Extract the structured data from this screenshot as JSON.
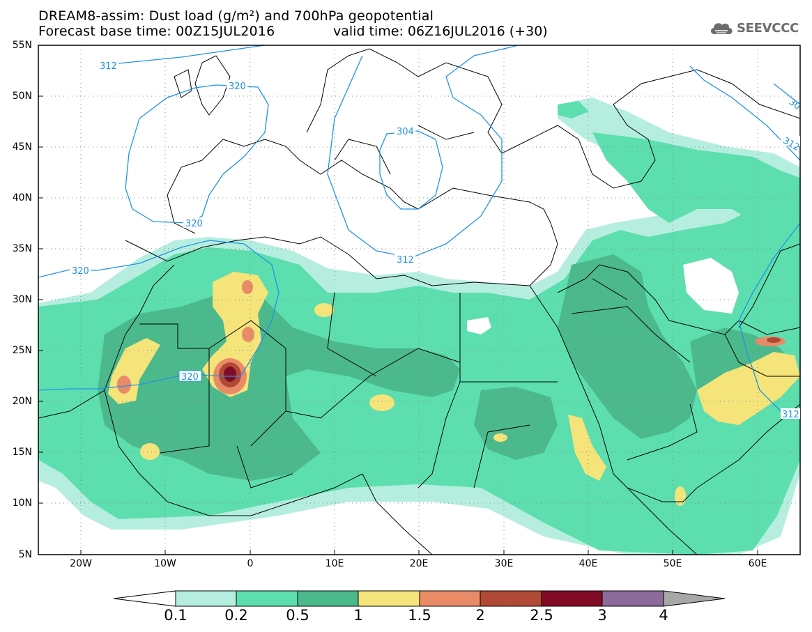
{
  "header": {
    "title_line1": "DREAM8-assim: Dust load (g/m²) and 700hPa geopotential",
    "title_line2": "Forecast base time: 00Z15JUL2016",
    "valid_time": "valid time: 06Z16JUL2016 (+30)",
    "logo_text": "SEEVCCC",
    "logo_icon": "cloud-icon"
  },
  "map": {
    "lat_labels": [
      "55N",
      "50N",
      "45N",
      "40N",
      "35N",
      "30N",
      "25N",
      "20N",
      "15N",
      "10N",
      "5N"
    ],
    "lon_labels": [
      "20W",
      "10W",
      "0",
      "10E",
      "20E",
      "30E",
      "40E",
      "50E",
      "60E"
    ],
    "contour_labels": [
      "312",
      "320",
      "304",
      "312",
      "320",
      "320",
      "312",
      "312",
      "320",
      "30"
    ],
    "colors": {
      "coast": "#000000",
      "contour": "#1f93e6",
      "grid": "#888888"
    }
  },
  "colorbar": {
    "levels": [
      "0.1",
      "0.2",
      "0.5",
      "1",
      "1.5",
      "2",
      "2.5",
      "3",
      "4"
    ],
    "colors": [
      "#b5eedf",
      "#5ddeae",
      "#4cb98c",
      "#f5e47a",
      "#e88b66",
      "#b04935",
      "#820c26",
      "#8c6a9a",
      "#a8a8a8"
    ],
    "under_color": "#ffffff"
  }
}
